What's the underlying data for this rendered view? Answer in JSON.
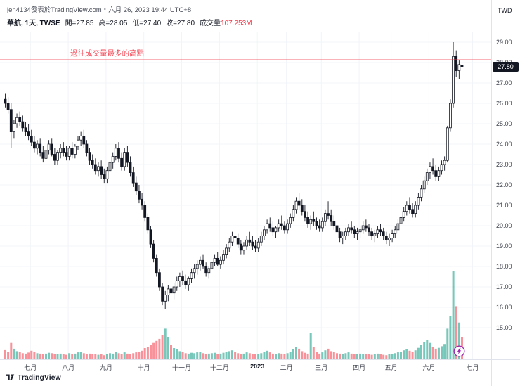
{
  "attribution": "jen4134發表於TradingView.com・六月 26, 2023 19:44 UTC+8",
  "legend": {
    "symbol": "華航, 1天, TWSE",
    "value_color": "#131722",
    "fields": [
      {
        "label": "開=",
        "value": "27.85"
      },
      {
        "label": "高=",
        "value": "28.05"
      },
      {
        "label": "低=",
        "value": "27.40"
      },
      {
        "label": "收=",
        "value": "27.80"
      },
      {
        "label": "成交量",
        "value": "107.253M",
        "color": "#f23645"
      }
    ]
  },
  "annotation": {
    "text": "過往成交量最多的高點",
    "price": 28.15,
    "color": "#f23645"
  },
  "price_axis": {
    "currency": "TWD",
    "current": "27.80",
    "current_price": 27.8,
    "ticks": [
      "29.00",
      "28.00",
      "27.00",
      "26.00",
      "25.00",
      "24.00",
      "23.00",
      "22.00",
      "21.00",
      "20.00",
      "19.00",
      "18.00",
      "17.00",
      "16.00",
      "15.00"
    ]
  },
  "time_axis": {
    "labels": [
      {
        "text": "七月",
        "i": 9
      },
      {
        "text": "八月",
        "i": 22
      },
      {
        "text": "九月",
        "i": 35
      },
      {
        "text": "十月",
        "i": 48
      },
      {
        "text": "十一月",
        "i": 61
      },
      {
        "text": "十二月",
        "i": 74
      },
      {
        "text": "2023",
        "i": 87,
        "year": true
      },
      {
        "text": "二月",
        "i": 97
      },
      {
        "text": "三月",
        "i": 109
      },
      {
        "text": "四月",
        "i": 122
      },
      {
        "text": "五月",
        "i": 133
      },
      {
        "text": "六月",
        "i": 146
      },
      {
        "text": "七月",
        "i": 161
      }
    ]
  },
  "watermark": {
    "text": "TradingView"
  },
  "marker": {
    "type": "lightning",
    "color": "#9c27b0"
  },
  "chart_data": {
    "type": "candlestick",
    "symbol": "華航",
    "exchange": "TWSE",
    "interval": "1天",
    "ylabel": "TWD",
    "y_range": [
      15,
      29
    ],
    "last_bar": {
      "open": 27.85,
      "high": 28.05,
      "low": 27.4,
      "close": 27.8,
      "volume_M": 107.253
    },
    "red_line_price": 28.15,
    "colors": {
      "up": "#ffffff",
      "down": "#131722",
      "volume_up": "#089981",
      "volume_down": "#f23645"
    },
    "candles": [
      [
        26.2,
        26.5,
        25.8,
        26.0
      ],
      [
        26.0,
        26.3,
        25.5,
        25.7
      ],
      [
        25.7,
        26.0,
        23.8,
        24.6
      ],
      [
        24.6,
        25.2,
        24.3,
        25.0
      ],
      [
        25.0,
        25.5,
        24.8,
        25.3
      ],
      [
        25.3,
        25.6,
        24.9,
        25.1
      ],
      [
        25.1,
        25.4,
        24.6,
        24.8
      ],
      [
        24.8,
        25.1,
        24.4,
        24.6
      ],
      [
        24.6,
        25.0,
        24.2,
        24.4
      ],
      [
        24.4,
        24.7,
        23.9,
        24.1
      ],
      [
        24.1,
        24.4,
        23.6,
        23.8
      ],
      [
        23.8,
        24.2,
        23.5,
        24.0
      ],
      [
        24.0,
        24.3,
        23.4,
        23.6
      ],
      [
        23.6,
        23.9,
        23.1,
        23.3
      ],
      [
        23.3,
        23.8,
        23.0,
        23.7
      ],
      [
        23.7,
        24.2,
        23.5,
        24.0
      ],
      [
        24.0,
        24.3,
        23.4,
        23.5
      ],
      [
        23.5,
        23.8,
        23.0,
        23.2
      ],
      [
        23.2,
        23.7,
        23.0,
        23.6
      ],
      [
        23.6,
        24.0,
        23.3,
        23.8
      ],
      [
        23.8,
        24.1,
        23.4,
        23.6
      ],
      [
        23.6,
        23.9,
        23.2,
        23.4
      ],
      [
        23.4,
        23.9,
        23.2,
        23.8
      ],
      [
        23.8,
        24.1,
        23.3,
        23.5
      ],
      [
        23.5,
        24.0,
        23.3,
        23.9
      ],
      [
        23.9,
        24.4,
        23.7,
        24.2
      ],
      [
        24.2,
        24.6,
        23.9,
        24.4
      ],
      [
        24.4,
        24.7,
        23.8,
        24.0
      ],
      [
        24.0,
        24.2,
        23.4,
        23.6
      ],
      [
        23.6,
        23.8,
        23.0,
        23.2
      ],
      [
        23.2,
        23.5,
        22.8,
        23.0
      ],
      [
        23.0,
        23.3,
        22.5,
        22.7
      ],
      [
        22.7,
        23.1,
        22.4,
        22.9
      ],
      [
        22.9,
        23.2,
        22.3,
        22.5
      ],
      [
        22.5,
        22.8,
        22.1,
        22.3
      ],
      [
        22.3,
        22.9,
        22.1,
        22.7
      ],
      [
        22.7,
        23.3,
        22.5,
        23.1
      ],
      [
        23.1,
        23.6,
        22.8,
        23.4
      ],
      [
        23.4,
        24.0,
        23.2,
        23.8
      ],
      [
        23.8,
        24.1,
        23.1,
        23.3
      ],
      [
        23.3,
        23.6,
        22.7,
        22.9
      ],
      [
        22.9,
        23.8,
        22.7,
        23.6
      ],
      [
        23.6,
        23.9,
        22.9,
        23.1
      ],
      [
        23.1,
        23.4,
        22.4,
        22.6
      ],
      [
        22.6,
        22.9,
        21.9,
        22.1
      ],
      [
        22.1,
        22.4,
        21.5,
        21.7
      ],
      [
        21.7,
        22.0,
        21.1,
        21.3
      ],
      [
        21.3,
        21.6,
        20.8,
        21.0
      ],
      [
        21.0,
        21.2,
        20.2,
        20.4
      ],
      [
        20.4,
        20.6,
        19.6,
        19.8
      ],
      [
        19.8,
        20.0,
        18.9,
        19.1
      ],
      [
        19.1,
        19.3,
        18.2,
        18.4
      ],
      [
        18.4,
        18.6,
        17.5,
        17.7
      ],
      [
        17.7,
        17.9,
        16.8,
        17.0
      ],
      [
        17.0,
        17.2,
        16.1,
        16.3
      ],
      [
        16.3,
        16.8,
        15.9,
        16.6
      ],
      [
        16.6,
        17.1,
        16.3,
        16.9
      ],
      [
        16.9,
        17.3,
        16.5,
        16.7
      ],
      [
        16.7,
        17.2,
        16.4,
        17.0
      ],
      [
        17.0,
        17.5,
        16.8,
        17.3
      ],
      [
        17.3,
        17.7,
        17.0,
        17.5
      ],
      [
        17.5,
        17.8,
        17.1,
        17.3
      ],
      [
        17.3,
        17.6,
        16.9,
        17.1
      ],
      [
        17.1,
        17.5,
        16.8,
        17.4
      ],
      [
        17.4,
        17.9,
        17.2,
        17.7
      ],
      [
        17.7,
        18.1,
        17.4,
        17.9
      ],
      [
        17.9,
        18.3,
        17.6,
        18.1
      ],
      [
        18.1,
        18.5,
        17.8,
        18.3
      ],
      [
        18.3,
        18.6,
        17.9,
        18.0
      ],
      [
        18.0,
        18.2,
        17.5,
        17.7
      ],
      [
        17.7,
        18.0,
        17.4,
        17.9
      ],
      [
        17.9,
        18.4,
        17.7,
        18.2
      ],
      [
        18.2,
        18.6,
        18.0,
        18.4
      ],
      [
        18.4,
        18.7,
        18.0,
        18.1
      ],
      [
        18.1,
        18.5,
        17.9,
        18.3
      ],
      [
        18.3,
        18.8,
        18.1,
        18.6
      ],
      [
        18.6,
        19.1,
        18.4,
        18.9
      ],
      [
        18.9,
        19.4,
        18.7,
        19.2
      ],
      [
        19.2,
        19.7,
        19.0,
        19.5
      ],
      [
        19.5,
        19.9,
        19.2,
        19.4
      ],
      [
        19.4,
        19.6,
        18.9,
        19.1
      ],
      [
        19.1,
        19.3,
        18.6,
        18.8
      ],
      [
        18.8,
        19.2,
        18.6,
        19.0
      ],
      [
        19.0,
        19.5,
        18.8,
        19.3
      ],
      [
        19.3,
        19.7,
        19.0,
        19.2
      ],
      [
        19.2,
        19.5,
        18.8,
        19.0
      ],
      [
        19.0,
        19.3,
        18.7,
        18.9
      ],
      [
        18.9,
        19.4,
        18.7,
        19.2
      ],
      [
        19.2,
        19.7,
        19.0,
        19.5
      ],
      [
        19.5,
        20.0,
        19.3,
        19.8
      ],
      [
        19.8,
        20.3,
        19.6,
        20.1
      ],
      [
        20.1,
        20.4,
        19.7,
        19.9
      ],
      [
        19.9,
        20.2,
        19.5,
        19.7
      ],
      [
        19.7,
        20.0,
        19.4,
        19.9
      ],
      [
        19.9,
        20.3,
        19.7,
        20.1
      ],
      [
        20.1,
        20.5,
        19.8,
        20.0
      ],
      [
        20.0,
        20.2,
        19.6,
        19.8
      ],
      [
        19.8,
        20.3,
        19.6,
        20.1
      ],
      [
        20.1,
        20.6,
        19.9,
        20.4
      ],
      [
        20.4,
        21.0,
        20.2,
        20.8
      ],
      [
        20.8,
        21.4,
        20.6,
        21.2
      ],
      [
        21.2,
        21.6,
        20.8,
        21.0
      ],
      [
        21.0,
        21.3,
        20.5,
        20.7
      ],
      [
        20.7,
        21.0,
        20.2,
        20.4
      ],
      [
        20.4,
        20.7,
        19.9,
        20.1
      ],
      [
        20.1,
        20.5,
        19.8,
        20.3
      ],
      [
        20.3,
        20.7,
        20.0,
        20.2
      ],
      [
        20.2,
        20.4,
        19.8,
        20.0
      ],
      [
        20.0,
        20.3,
        19.7,
        19.9
      ],
      [
        19.9,
        20.4,
        19.7,
        20.2
      ],
      [
        20.2,
        20.8,
        20.0,
        20.6
      ],
      [
        20.6,
        21.2,
        20.3,
        20.5
      ],
      [
        20.5,
        20.8,
        20.0,
        20.2
      ],
      [
        20.2,
        20.5,
        19.8,
        20.0
      ],
      [
        20.0,
        20.2,
        19.5,
        19.7
      ],
      [
        19.7,
        19.9,
        19.2,
        19.4
      ],
      [
        19.4,
        19.7,
        19.1,
        19.5
      ],
      [
        19.5,
        19.9,
        19.3,
        19.7
      ],
      [
        19.7,
        20.1,
        19.5,
        19.9
      ],
      [
        19.9,
        20.2,
        19.6,
        19.8
      ],
      [
        19.8,
        20.0,
        19.4,
        19.6
      ],
      [
        19.6,
        19.9,
        19.3,
        19.7
      ],
      [
        19.7,
        20.0,
        19.4,
        19.8
      ],
      [
        19.8,
        20.2,
        19.6,
        20.0
      ],
      [
        20.0,
        20.3,
        19.7,
        19.9
      ],
      [
        19.9,
        20.1,
        19.5,
        19.7
      ],
      [
        19.7,
        19.9,
        19.3,
        19.5
      ],
      [
        19.5,
        19.8,
        19.2,
        19.6
      ],
      [
        19.6,
        20.0,
        19.4,
        19.8
      ],
      [
        19.8,
        20.1,
        19.5,
        19.7
      ],
      [
        19.7,
        19.9,
        19.3,
        19.5
      ],
      [
        19.5,
        19.7,
        19.1,
        19.3
      ],
      [
        19.3,
        19.6,
        19.0,
        19.4
      ],
      [
        19.4,
        19.8,
        19.2,
        19.6
      ],
      [
        19.6,
        20.0,
        19.4,
        19.8
      ],
      [
        19.8,
        20.3,
        19.6,
        20.1
      ],
      [
        20.1,
        20.6,
        19.9,
        20.4
      ],
      [
        20.4,
        20.9,
        20.2,
        20.7
      ],
      [
        20.7,
        21.2,
        20.5,
        21.0
      ],
      [
        21.0,
        21.4,
        20.6,
        20.8
      ],
      [
        20.8,
        21.1,
        20.4,
        20.6
      ],
      [
        20.6,
        21.2,
        20.4,
        21.0
      ],
      [
        21.0,
        21.6,
        20.8,
        21.4
      ],
      [
        21.4,
        22.0,
        21.2,
        21.8
      ],
      [
        21.8,
        22.4,
        21.6,
        22.2
      ],
      [
        22.2,
        22.8,
        22.0,
        22.6
      ],
      [
        22.6,
        23.1,
        22.3,
        22.9
      ],
      [
        22.9,
        23.3,
        22.5,
        22.7
      ],
      [
        22.7,
        23.0,
        22.2,
        22.4
      ],
      [
        22.4,
        22.9,
        22.2,
        22.7
      ],
      [
        22.7,
        23.2,
        22.5,
        23.0
      ],
      [
        23.0,
        23.4,
        22.7,
        23.2
      ],
      [
        23.2,
        24.9,
        23.1,
        24.8
      ],
      [
        24.8,
        26.2,
        24.6,
        26.0
      ],
      [
        26.0,
        29.0,
        25.8,
        28.3
      ],
      [
        28.3,
        28.6,
        27.3,
        27.6
      ],
      [
        27.6,
        28.1,
        27.2,
        27.9
      ],
      [
        27.85,
        28.05,
        27.4,
        27.8
      ]
    ],
    "volumes": [
      45,
      38,
      80,
      52,
      40,
      35,
      30,
      28,
      33,
      42,
      36,
      30,
      28,
      26,
      28,
      32,
      30,
      26,
      25,
      28,
      24,
      22,
      30,
      26,
      28,
      34,
      38,
      30,
      26,
      28,
      24,
      26,
      22,
      24,
      20,
      26,
      30,
      28,
      36,
      30,
      26,
      34,
      28,
      26,
      30,
      34,
      38,
      42,
      55,
      60,
      70,
      80,
      90,
      100,
      120,
      150,
      110,
      70,
      55,
      48,
      40,
      35,
      30,
      28,
      32,
      30,
      34,
      36,
      30,
      26,
      28,
      30,
      32,
      26,
      28,
      32,
      36,
      40,
      44,
      36,
      30,
      26,
      28,
      34,
      30,
      26,
      24,
      26,
      30,
      36,
      42,
      34,
      28,
      26,
      30,
      28,
      24,
      30,
      36,
      48,
      60,
      52,
      40,
      32,
      28,
      130,
      60,
      36,
      28,
      34,
      44,
      52,
      40,
      36,
      30,
      28,
      26,
      30,
      34,
      28,
      24,
      26,
      28,
      26,
      24,
      26,
      22,
      24,
      28,
      26,
      22,
      20,
      24,
      26,
      30,
      34,
      38,
      44,
      50,
      42,
      36,
      44,
      56,
      70,
      85,
      95,
      80,
      60,
      52,
      56,
      64,
      75,
      150,
      210,
      430,
      260,
      180,
      107.253
    ]
  }
}
